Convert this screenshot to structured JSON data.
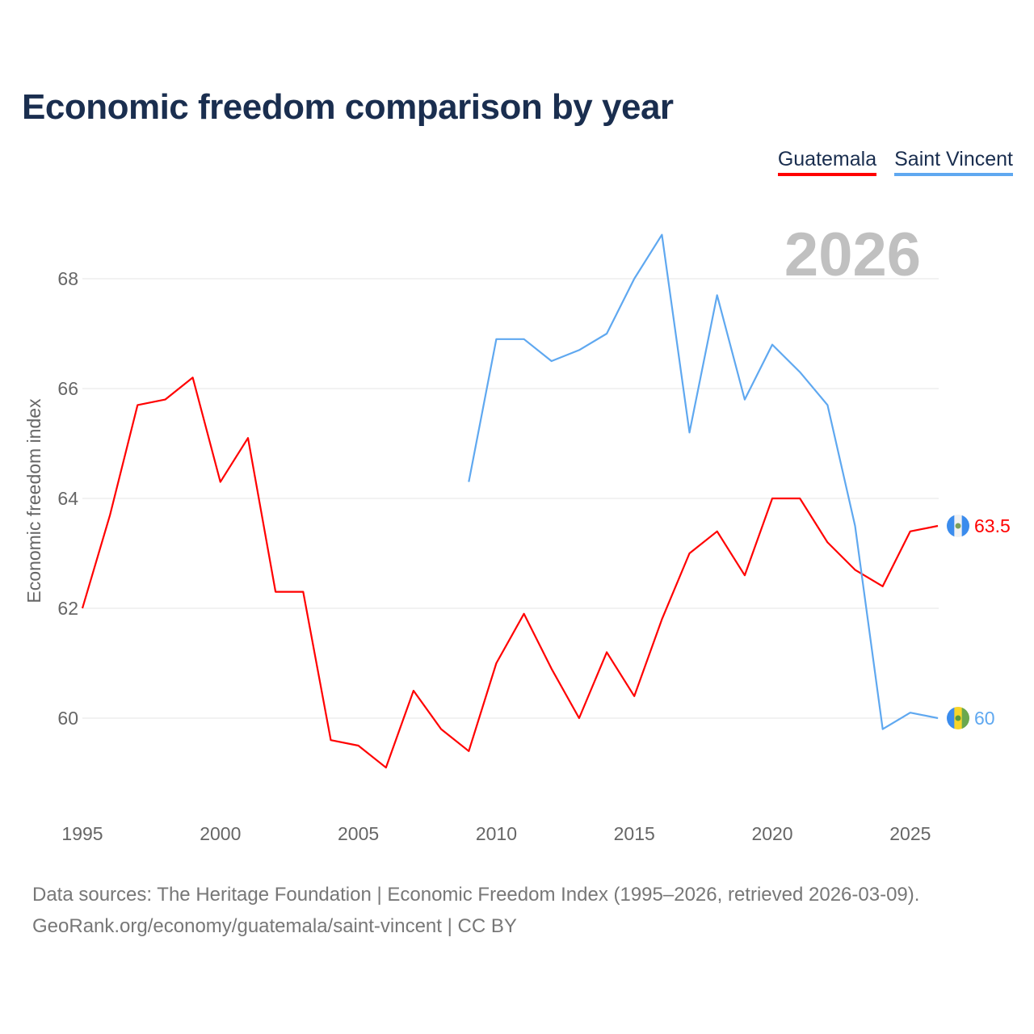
{
  "chart_data": {
    "type": "line",
    "title": "Economic freedom comparison by year",
    "ylabel": "Economic freedom index",
    "xlabel": "",
    "xlim": [
      1995,
      2026
    ],
    "ylim": [
      60,
      68
    ],
    "yticks": [
      60,
      62,
      64,
      66,
      68
    ],
    "xticks": [
      1995,
      2000,
      2005,
      2010,
      2015,
      2020,
      2025
    ],
    "year_watermark": "2026",
    "grid": true,
    "legend_position": "top-right",
    "series": [
      {
        "name": "Guatemala",
        "color": "#ff0000",
        "end_label": "63.5",
        "flag": "guatemala-flag",
        "x": [
          1995,
          1996,
          1997,
          1998,
          1999,
          2000,
          2001,
          2002,
          2003,
          2004,
          2005,
          2006,
          2007,
          2008,
          2009,
          2010,
          2011,
          2012,
          2013,
          2014,
          2015,
          2016,
          2017,
          2018,
          2019,
          2020,
          2021,
          2022,
          2023,
          2024,
          2025,
          2026
        ],
        "values": [
          62.0,
          63.7,
          65.7,
          65.8,
          66.2,
          64.3,
          65.1,
          62.3,
          62.3,
          59.6,
          59.5,
          59.1,
          60.5,
          59.8,
          59.4,
          61.0,
          61.9,
          60.9,
          60.0,
          61.2,
          60.4,
          61.8,
          63.0,
          63.4,
          62.6,
          64.0,
          64.0,
          63.2,
          62.7,
          62.4,
          63.4,
          63.5
        ]
      },
      {
        "name": "Saint Vincent",
        "color": "#5fa8f0",
        "end_label": "60",
        "flag": "saint-vincent-flag",
        "x": [
          2009,
          2010,
          2011,
          2012,
          2013,
          2014,
          2015,
          2016,
          2017,
          2018,
          2019,
          2020,
          2021,
          2022,
          2023,
          2024,
          2025,
          2026
        ],
        "values": [
          64.3,
          66.9,
          66.9,
          66.5,
          66.7,
          67.0,
          68.0,
          68.8,
          65.2,
          67.7,
          65.8,
          66.8,
          66.3,
          65.7,
          63.5,
          59.8,
          60.1,
          60.0
        ]
      }
    ]
  },
  "footer": {
    "line1": "Data sources: The Heritage Foundation | Economic Freedom Index (1995–2026, retrieved 2026-03-09).",
    "line2": "GeoRank.org/economy/guatemala/saint-vincent | CC BY"
  }
}
